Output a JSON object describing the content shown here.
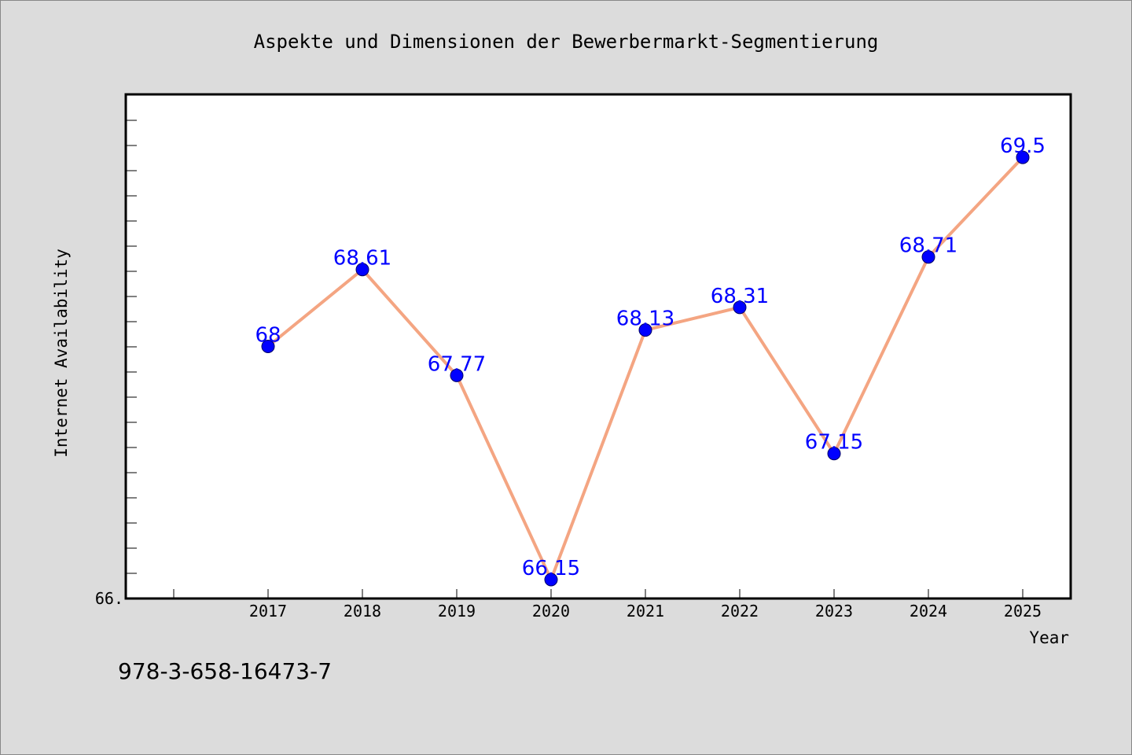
{
  "chart_data": {
    "type": "line",
    "title": "Aspekte und Dimensionen der Bewerbermarkt-Segmentierung",
    "xlabel": "Year",
    "ylabel": "Internet Availability",
    "categories": [
      "2017",
      "2018",
      "2019",
      "2020",
      "2021",
      "2022",
      "2023",
      "2024",
      "2025"
    ],
    "series": [
      {
        "values": [
          68,
          68.61,
          67.77,
          66.15,
          68.13,
          68.31,
          67.15,
          68.71,
          69.5
        ]
      }
    ],
    "data_labels": [
      "68",
      "68.61",
      "67.77",
      "66.15",
      "68.13",
      "68.31",
      "67.15",
      "68.71",
      "69.5"
    ],
    "ylim": [
      66.0,
      70.0
    ],
    "y_tick_labels": [
      "66."
    ],
    "grid": false,
    "line_color": "#f4a582",
    "marker_color": "#0000ff",
    "label_color": "#0000ff"
  },
  "isbn": "978-3-658-16473-7"
}
